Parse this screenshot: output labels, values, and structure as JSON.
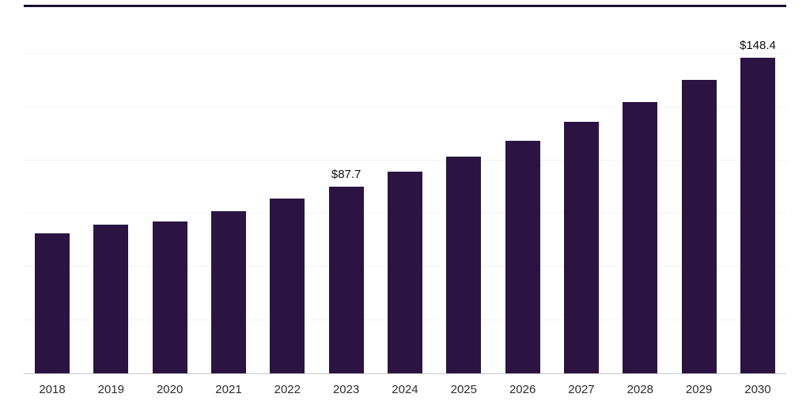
{
  "chart_data": {
    "type": "bar",
    "title": "",
    "xlabel": "",
    "ylabel": "",
    "categories": [
      "2018",
      "2019",
      "2020",
      "2021",
      "2022",
      "2023",
      "2024",
      "2025",
      "2026",
      "2027",
      "2028",
      "2029",
      "2030"
    ],
    "values": [
      65.7,
      69.8,
      71.4,
      76.1,
      82.0,
      87.7,
      94.6,
      101.8,
      109.2,
      118.0,
      127.3,
      137.7,
      148.4
    ],
    "value_labels": [
      null,
      null,
      null,
      null,
      null,
      "$87.7",
      null,
      null,
      null,
      null,
      null,
      null,
      "$148.4"
    ],
    "ylim": [
      0,
      172
    ],
    "grid_step": 25,
    "grid_on": true,
    "legend": "none",
    "bar_color": "#2b1442",
    "grid_color": "#f2f2f4",
    "axis_line_color": "#c9c9c9",
    "top_border_color": "#190f2e",
    "value_label_color": "#0f0f0f",
    "tick_label_color": "#2d2d2d"
  }
}
